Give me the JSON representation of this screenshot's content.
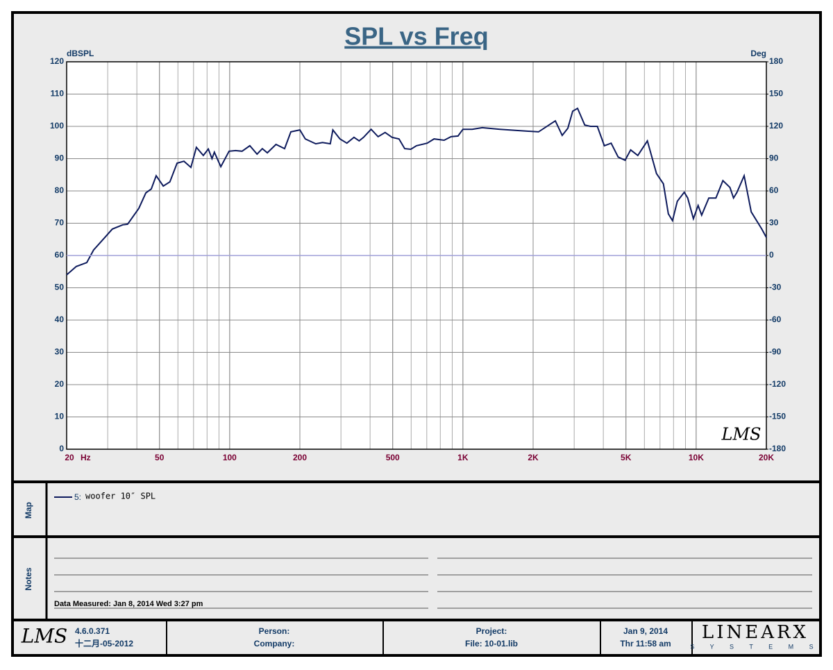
{
  "chart_data": {
    "type": "line",
    "title": "SPL vs Freq",
    "y_label": "dBSPL",
    "y2_label": "Deg",
    "x_unit": "Hz",
    "xscale": "log",
    "xlim": [
      20,
      20000
    ],
    "xticks": [
      20,
      50,
      100,
      200,
      500,
      {
        "value": 1000,
        "label": "1K"
      },
      {
        "value": 2000,
        "label": "2K"
      },
      {
        "value": 5000,
        "label": "5K"
      },
      {
        "value": 10000,
        "label": "10K"
      },
      {
        "value": 20000,
        "label": "20K"
      }
    ],
    "ylim": [
      0,
      120
    ],
    "yticks": [
      0,
      10,
      20,
      30,
      40,
      50,
      60,
      70,
      80,
      90,
      100,
      110,
      120
    ],
    "y2lim": [
      -180,
      180
    ],
    "y2ticks": [
      -180,
      -150,
      -120,
      -90,
      -60,
      -30,
      0,
      30,
      60,
      90,
      120,
      150,
      180
    ],
    "grid": true,
    "series": [
      {
        "id": "5:",
        "name": "woofer 10″ SPL",
        "color": "#0d1a5c",
        "x": [
          20,
          22,
          24.4,
          26.1,
          29,
          31.4,
          34.8,
          36.5,
          40.8,
          43.7,
          46.1,
          48.4,
          51.9,
          55.4,
          59.5,
          63.7,
          68.2,
          72,
          77.1,
          81,
          84,
          86,
          91.6,
          99.4,
          106,
          113,
          122,
          131,
          138,
          145,
          158,
          172,
          183,
          200,
          211,
          234,
          250,
          270,
          277,
          297,
          318,
          341,
          359,
          375,
          404,
          433,
          464,
          497,
          532,
          563,
          598,
          632,
          703,
          752,
          831,
          889,
          953,
          1000,
          1096,
          1210,
          1441,
          1720,
          2110,
          2404,
          2491,
          2665,
          2818,
          2955,
          3100,
          3330,
          3520,
          3770,
          4040,
          4320,
          4630,
          4960,
          5240,
          5620,
          6180,
          6760,
          7240,
          7600,
          7920,
          8300,
          8890,
          9200,
          9730,
          10200,
          10560,
          11330,
          12150,
          13020,
          13960,
          14460,
          14970,
          16060,
          17220,
          19110,
          20000
        ],
        "values": [
          54,
          56.6,
          57.8,
          61.7,
          65.4,
          68.2,
          69.5,
          69.7,
          74.6,
          79.4,
          80.6,
          84.7,
          81.5,
          82.8,
          88.6,
          89.2,
          87.3,
          93.5,
          91,
          93,
          90,
          92,
          87.5,
          92.3,
          92.5,
          92.3,
          94,
          91.4,
          93.1,
          91.8,
          94.4,
          93.1,
          98.3,
          98.9,
          96.1,
          94.6,
          95,
          94.6,
          98.9,
          96.1,
          94.8,
          96.6,
          95.5,
          96.6,
          99.1,
          96.8,
          98.1,
          96.6,
          96.1,
          93.1,
          92.9,
          94,
          94.8,
          96.1,
          95.7,
          96.8,
          97,
          99.1,
          99.1,
          99.6,
          99.1,
          98.7,
          98.3,
          101,
          101.7,
          97.2,
          99.4,
          104.7,
          105.6,
          100.4,
          100,
          100,
          94,
          94.8,
          90.5,
          89.5,
          92.7,
          91,
          95.5,
          85.4,
          82.2,
          72.9,
          70.8,
          76.8,
          79.6,
          77.8,
          71.4,
          75.5,
          72.5,
          77.8,
          77.8,
          83.2,
          81.1,
          77.8,
          79.6,
          84.7,
          73.5,
          68.2,
          65.6
        ]
      },
      {
        "axis": "y2",
        "color": "#a0a0d8",
        "x": [
          20,
          20000
        ],
        "values": [
          0,
          0
        ]
      }
    ]
  },
  "watermark": "LMS",
  "map_label": "Map",
  "notes_label": "Notes",
  "notes_text": "Data Measured: Jan 8, 2014  Wed  3:27 pm",
  "footer": {
    "logo": "LMS",
    "version": "4.6.0.371",
    "build_date": "十二月-05-2012",
    "person": "Person:",
    "company": "Company:",
    "project": "Project:",
    "file": "File: 10-01.lib",
    "date": "Jan  9, 2014",
    "time": "Thr 11:58 am",
    "brand": "LINEARX",
    "brand_sub": "S Y S T E M S"
  }
}
